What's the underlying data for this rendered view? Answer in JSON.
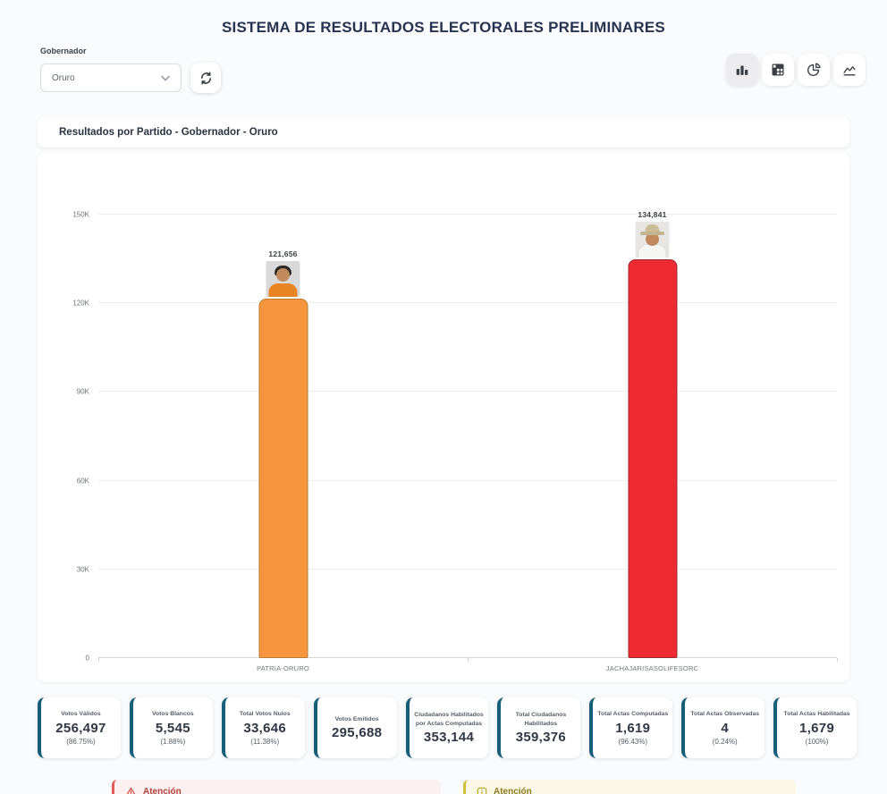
{
  "app": {
    "title": "SISTEMA DE RESULTADOS ELECTORALES PRELIMINARES"
  },
  "filters": {
    "label": "Gobernador",
    "selected": "Oruro"
  },
  "toolbar": {
    "icons": [
      "bar-chart-icon",
      "table-icon",
      "pie-chart-icon",
      "trend-chart-icon"
    ],
    "active_index": 0
  },
  "panel": {
    "title": "Resultados por Partido - Gobernador - Oruro"
  },
  "chart_data": {
    "type": "bar",
    "title": "Resultados por Partido - Gobernador - Oruro",
    "categories": [
      "PATRIA-ORURO",
      "JACHAJARISASOLIFESORC"
    ],
    "values": [
      121656,
      134841
    ],
    "value_labels": [
      "121,656",
      "134,841"
    ],
    "bar_colors": [
      "#F7953F",
      "#ED2B31"
    ],
    "bar_border_colors": [
      "#BE7A2E",
      "#9E2B32"
    ],
    "candidate_photos": [
      "candidate-orange-shirt",
      "candidate-hat-white-shirt"
    ],
    "ylim": [
      0,
      150000
    ],
    "ytick_labels": [
      "0",
      "30K",
      "60K",
      "90K",
      "120K",
      "150K"
    ],
    "grid": true,
    "legend": false
  },
  "stats": [
    {
      "title": "Votos Válidos",
      "value": "256,497",
      "pct": "(86.75%)"
    },
    {
      "title": "Votos Blancos",
      "value": "5,545",
      "pct": "(1.88%)"
    },
    {
      "title": "Total Votos Nulos",
      "value": "33,646",
      "pct": "(11.38%)"
    },
    {
      "title": "Votos Emitidos",
      "value": "295,688",
      "pct": null
    },
    {
      "title": "Ciudadanos Habilitados por Actas Computadas",
      "value": "353,144",
      "pct": null
    },
    {
      "title": "Total Ciudadanos Habilitados",
      "value": "359,376",
      "pct": null
    },
    {
      "title": "Total Actas Computadas",
      "value": "1,619",
      "pct": "(96.43%)"
    },
    {
      "title": "Total Actas Observadas",
      "value": "4",
      "pct": "(0.24%)"
    },
    {
      "title": "Total Actas Habilitadas",
      "value": "1,679",
      "pct": "(100%)"
    }
  ],
  "alerts": [
    {
      "type": "error",
      "title": "Atención"
    },
    {
      "type": "warning",
      "title": "Atención"
    }
  ],
  "colors": {
    "stat_accent": "#175E78",
    "title_text": "#273350",
    "grid": "#ededee"
  }
}
